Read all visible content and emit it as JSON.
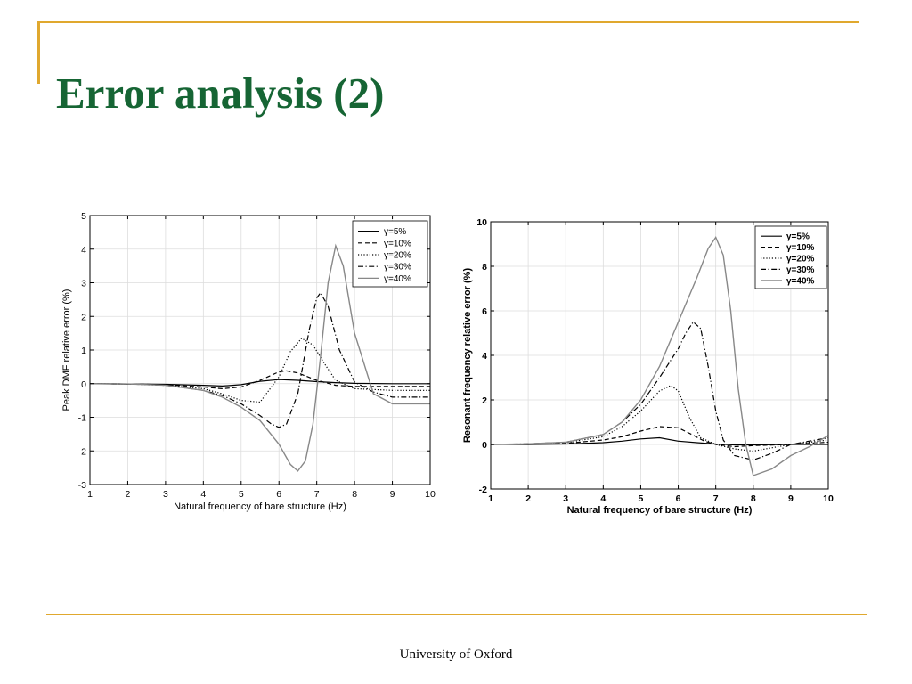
{
  "slide": {
    "title": "Error analysis (2)",
    "footer": "University of  Oxford",
    "accent_color": "#e0a82e",
    "title_color": "#166534"
  },
  "chart_data": [
    {
      "type": "line",
      "xlabel": "Natural frequency of bare structure (Hz)",
      "ylabel": "Peak DMF relative error (%)",
      "xlim": [
        1,
        10
      ],
      "ylim": [
        -3,
        5
      ],
      "xticks": [
        "1",
        "2",
        "3",
        "4",
        "5",
        "6",
        "7",
        "8",
        "9",
        "10"
      ],
      "yticks": [
        "-3",
        "-2",
        "-1",
        "0",
        "1",
        "2",
        "3",
        "4",
        "5"
      ],
      "grid": true,
      "legend": "top-right",
      "series": [
        {
          "name": "γ=5%",
          "style": "solid",
          "color": "#000000",
          "x": [
            1,
            2,
            3,
            4,
            4.5,
            5,
            5.5,
            6,
            6.5,
            7,
            7.5,
            8,
            9,
            10
          ],
          "y": [
            0,
            -0.01,
            -0.02,
            -0.05,
            -0.07,
            -0.03,
            0.07,
            0.12,
            0.1,
            0.06,
            0.03,
            0.01,
            0,
            0
          ]
        },
        {
          "name": "γ=10%",
          "style": "dashed",
          "color": "#000000",
          "x": [
            1,
            2,
            3,
            4,
            4.5,
            5,
            5.5,
            6,
            6.2,
            6.5,
            7,
            7.5,
            8,
            9,
            10
          ],
          "y": [
            0,
            -0.01,
            -0.03,
            -0.1,
            -0.15,
            -0.1,
            0.1,
            0.35,
            0.38,
            0.32,
            0.1,
            -0.05,
            -0.08,
            -0.08,
            -0.08
          ]
        },
        {
          "name": "γ=20%",
          "style": "dotted",
          "color": "#000000",
          "x": [
            1,
            2,
            3,
            4,
            4.5,
            5,
            5.5,
            6,
            6.3,
            6.6,
            6.9,
            7.2,
            7.5,
            8,
            9,
            10
          ],
          "y": [
            0,
            -0.01,
            -0.04,
            -0.15,
            -0.3,
            -0.5,
            -0.55,
            0.2,
            0.95,
            1.35,
            1.15,
            0.6,
            0.1,
            -0.15,
            -0.2,
            -0.2
          ]
        },
        {
          "name": "γ=30%",
          "style": "dashdot",
          "color": "#000000",
          "x": [
            1,
            2,
            3,
            4,
            4.5,
            5,
            5.5,
            5.8,
            6,
            6.2,
            6.5,
            6.8,
            7,
            7.1,
            7.3,
            7.6,
            8,
            8.5,
            9,
            10
          ],
          "y": [
            0,
            -0.01,
            -0.05,
            -0.2,
            -0.35,
            -0.6,
            -0.95,
            -1.2,
            -1.3,
            -1.2,
            -0.3,
            1.6,
            2.55,
            2.7,
            2.3,
            1.0,
            0.05,
            -0.25,
            -0.4,
            -0.4
          ]
        },
        {
          "name": "γ=40%",
          "style": "solid",
          "color": "#888888",
          "x": [
            1,
            2,
            3,
            4,
            4.5,
            5,
            5.5,
            6,
            6.3,
            6.5,
            6.7,
            6.9,
            7.1,
            7.3,
            7.5,
            7.7,
            8,
            8.5,
            9,
            10
          ],
          "y": [
            0,
            -0.01,
            -0.05,
            -0.2,
            -0.4,
            -0.7,
            -1.1,
            -1.8,
            -2.4,
            -2.6,
            -2.3,
            -1.2,
            0.8,
            3.0,
            4.1,
            3.5,
            1.5,
            -0.3,
            -0.6,
            -0.6
          ]
        }
      ]
    },
    {
      "type": "line",
      "xlabel": "Natural frequency of bare structure (Hz)",
      "ylabel": "Resonant frequency relative error (%)",
      "xlim": [
        1,
        10
      ],
      "ylim": [
        -2,
        10
      ],
      "xticks": [
        "1",
        "2",
        "3",
        "4",
        "5",
        "6",
        "7",
        "8",
        "9",
        "10"
      ],
      "yticks": [
        "-2",
        "0",
        "2",
        "4",
        "6",
        "8",
        "10"
      ],
      "grid": true,
      "legend": "top-right",
      "series": [
        {
          "name": "γ=5%",
          "style": "solid",
          "color": "#000000",
          "x": [
            1,
            2,
            3,
            4,
            4.5,
            5,
            5.5,
            6,
            6.5,
            7,
            7.5,
            8,
            9,
            10
          ],
          "y": [
            0,
            0,
            0.02,
            0.08,
            0.15,
            0.25,
            0.3,
            0.15,
            0.08,
            0.02,
            -0.02,
            -0.02,
            0,
            0
          ]
        },
        {
          "name": "γ=10%",
          "style": "dashed",
          "color": "#000000",
          "x": [
            1,
            2,
            3,
            4,
            4.5,
            5,
            5.5,
            6,
            6.3,
            6.7,
            7,
            7.5,
            8,
            9,
            10
          ],
          "y": [
            0,
            0.02,
            0.05,
            0.2,
            0.35,
            0.6,
            0.8,
            0.75,
            0.5,
            0.15,
            0,
            -0.1,
            -0.05,
            0,
            0.1
          ]
        },
        {
          "name": "γ=20%",
          "style": "dotted",
          "color": "#000000",
          "x": [
            1,
            2,
            3,
            4,
            4.5,
            5,
            5.5,
            5.8,
            6,
            6.3,
            6.6,
            7,
            7.5,
            8,
            9,
            10
          ],
          "y": [
            0,
            0.02,
            0.08,
            0.35,
            0.8,
            1.5,
            2.4,
            2.65,
            2.4,
            1.2,
            0.3,
            0,
            -0.2,
            -0.3,
            0,
            0.2
          ]
        },
        {
          "name": "γ=30%",
          "style": "dashdot",
          "color": "#000000",
          "x": [
            1,
            2,
            3,
            4,
            4.5,
            5,
            5.5,
            6,
            6.2,
            6.4,
            6.6,
            6.8,
            7,
            7.2,
            7.5,
            8,
            8.5,
            9,
            10
          ],
          "y": [
            0,
            0.03,
            0.1,
            0.45,
            1.0,
            1.8,
            3.0,
            4.3,
            5.0,
            5.5,
            5.2,
            3.5,
            1.5,
            0.2,
            -0.5,
            -0.7,
            -0.4,
            0,
            0.3
          ]
        },
        {
          "name": "γ=40%",
          "style": "solid",
          "color": "#888888",
          "x": [
            1,
            2,
            3,
            4,
            4.5,
            5,
            5.5,
            6,
            6.5,
            6.8,
            7,
            7.2,
            7.4,
            7.6,
            7.8,
            8,
            8.5,
            9,
            9.5,
            10
          ],
          "y": [
            0,
            0.03,
            0.1,
            0.45,
            1.0,
            2.0,
            3.5,
            5.5,
            7.5,
            8.8,
            9.3,
            8.5,
            6.0,
            2.5,
            0,
            -1.4,
            -1.1,
            -0.5,
            -0.1,
            0.4
          ]
        }
      ]
    }
  ]
}
